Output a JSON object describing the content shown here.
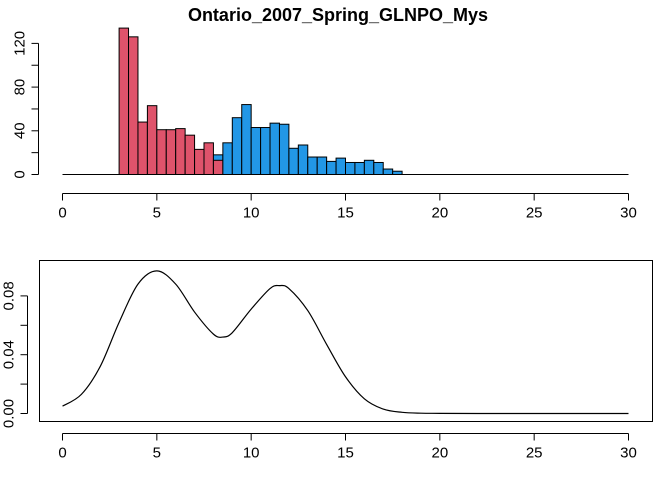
{
  "chart_data": [
    {
      "type": "histogram",
      "title": "Ontario_2007_Spring_GLNPO_Mys",
      "xlim": [
        0,
        30
      ],
      "ylim": [
        0,
        135
      ],
      "x_ticks": [
        0,
        5,
        10,
        15,
        20,
        25,
        30
      ],
      "y_ticks": [
        0,
        40,
        80,
        120
      ],
      "bin_width": 0.5,
      "colors": {
        "group1": "#DF536B",
        "group2": "#2297E6"
      },
      "bars": [
        {
          "x0": 3.0,
          "x1": 3.5,
          "group": "group1",
          "value": 134
        },
        {
          "x0": 3.5,
          "x1": 4.0,
          "group": "group1",
          "value": 126
        },
        {
          "x0": 4.0,
          "x1": 4.5,
          "group": "group1",
          "value": 48
        },
        {
          "x0": 4.5,
          "x1": 5.0,
          "group": "group1",
          "value": 63
        },
        {
          "x0": 5.0,
          "x1": 5.5,
          "group": "group1",
          "value": 41
        },
        {
          "x0": 5.5,
          "x1": 6.0,
          "group": "group1",
          "value": 41
        },
        {
          "x0": 6.0,
          "x1": 6.5,
          "group": "group1",
          "value": 42
        },
        {
          "x0": 6.5,
          "x1": 7.0,
          "group": "group1",
          "value": 36
        },
        {
          "x0": 7.0,
          "x1": 7.5,
          "group": "group1",
          "value": 23
        },
        {
          "x0": 7.5,
          "x1": 8.0,
          "group": "group1",
          "value": 29
        },
        {
          "x0": 8.0,
          "x1": 8.5,
          "group": "group2",
          "value": 18
        },
        {
          "x0": 8.0,
          "x1": 8.5,
          "group": "group1",
          "value": 13
        },
        {
          "x0": 8.5,
          "x1": 9.0,
          "group": "group2",
          "value": 29
        },
        {
          "x0": 9.0,
          "x1": 9.5,
          "group": "group2",
          "value": 52
        },
        {
          "x0": 9.5,
          "x1": 10.0,
          "group": "group2",
          "value": 64
        },
        {
          "x0": 10.0,
          "x1": 10.5,
          "group": "group2",
          "value": 43
        },
        {
          "x0": 10.5,
          "x1": 11.0,
          "group": "group2",
          "value": 43
        },
        {
          "x0": 11.0,
          "x1": 11.5,
          "group": "group2",
          "value": 47
        },
        {
          "x0": 11.5,
          "x1": 12.0,
          "group": "group2",
          "value": 46
        },
        {
          "x0": 12.0,
          "x1": 12.5,
          "group": "group2",
          "value": 24
        },
        {
          "x0": 12.5,
          "x1": 13.0,
          "group": "group2",
          "value": 27
        },
        {
          "x0": 13.0,
          "x1": 13.5,
          "group": "group2",
          "value": 16
        },
        {
          "x0": 13.5,
          "x1": 14.0,
          "group": "group2",
          "value": 16
        },
        {
          "x0": 14.0,
          "x1": 14.5,
          "group": "group2",
          "value": 12
        },
        {
          "x0": 14.5,
          "x1": 15.0,
          "group": "group2",
          "value": 15
        },
        {
          "x0": 15.0,
          "x1": 15.5,
          "group": "group2",
          "value": 11
        },
        {
          "x0": 15.5,
          "x1": 16.0,
          "group": "group2",
          "value": 11
        },
        {
          "x0": 16.0,
          "x1": 16.5,
          "group": "group2",
          "value": 13
        },
        {
          "x0": 16.5,
          "x1": 17.0,
          "group": "group2",
          "value": 11
        },
        {
          "x0": 17.0,
          "x1": 17.5,
          "group": "group2",
          "value": 5
        },
        {
          "x0": 17.5,
          "x1": 18.0,
          "group": "group2",
          "value": 3
        }
      ],
      "baseline": [
        0,
        30
      ]
    },
    {
      "type": "line",
      "title": "",
      "xlim": [
        0,
        30
      ],
      "ylim": [
        0,
        0.1
      ],
      "x_ticks": [
        0,
        5,
        10,
        15,
        20,
        25,
        30
      ],
      "y_ticks": [
        0.0,
        0.04,
        0.08
      ],
      "y_tick_labels": [
        "0.00",
        "0.04",
        "0.08"
      ],
      "x": [
        0,
        1,
        2,
        3,
        4,
        5,
        6,
        7,
        8,
        8.5,
        9,
        10,
        11,
        11.5,
        12,
        13,
        14,
        15,
        16,
        17,
        18,
        19,
        20,
        22,
        25,
        28,
        30
      ],
      "y": [
        0.005,
        0.013,
        0.032,
        0.062,
        0.088,
        0.097,
        0.088,
        0.069,
        0.054,
        0.052,
        0.055,
        0.071,
        0.085,
        0.087,
        0.085,
        0.07,
        0.047,
        0.025,
        0.01,
        0.003,
        0.0008,
        0.0002,
        0.0001,
        0.0,
        0.0,
        0.0,
        0.0
      ]
    }
  ]
}
